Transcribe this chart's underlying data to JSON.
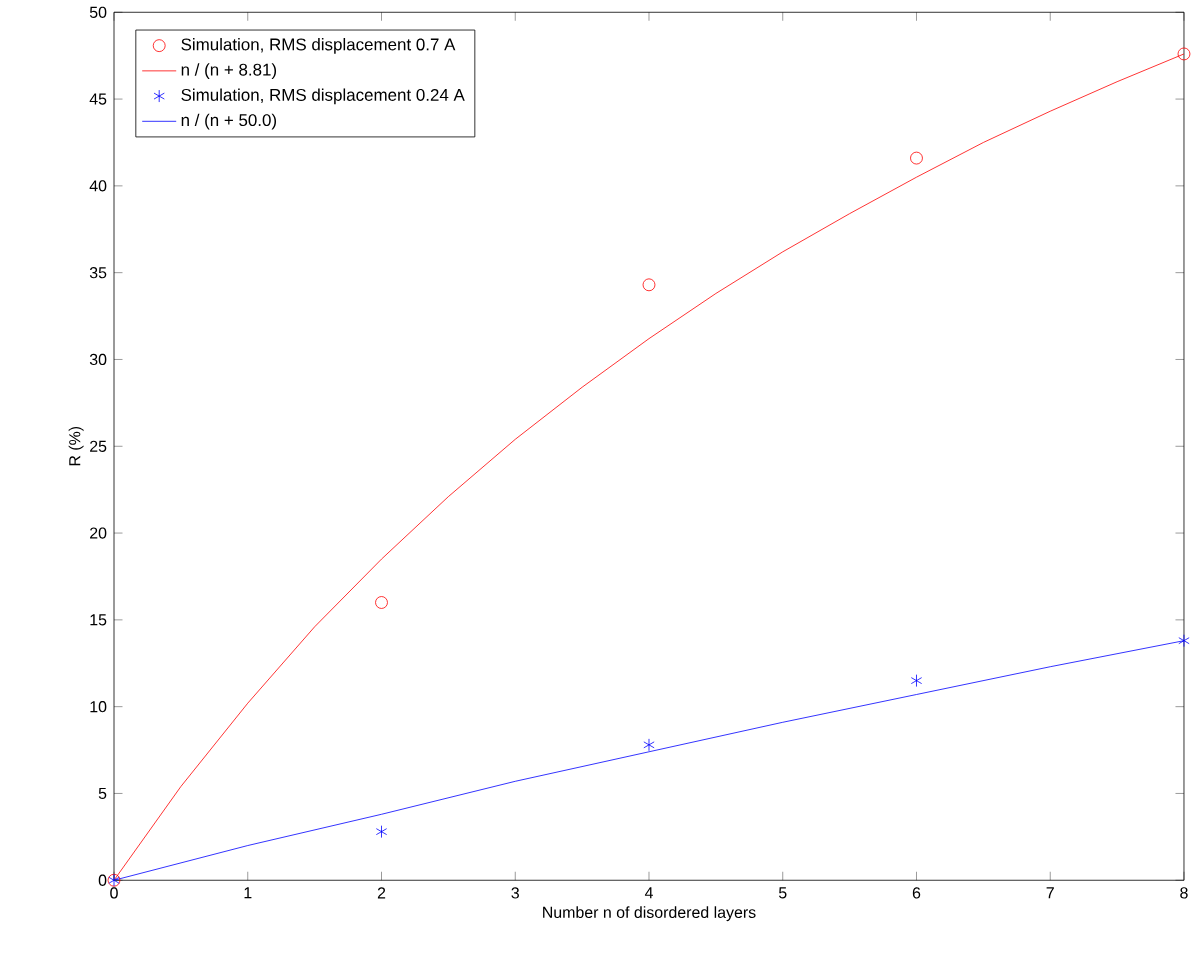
{
  "chart_data": {
    "type": "scatter",
    "xlabel": "Number n of disordered layers",
    "ylabel": "R (%)",
    "xlim": [
      0,
      8
    ],
    "ylim": [
      0,
      50
    ],
    "xticks": [
      0,
      1,
      2,
      3,
      4,
      5,
      6,
      7,
      8
    ],
    "yticks": [
      0,
      5,
      10,
      15,
      20,
      25,
      30,
      35,
      40,
      45,
      50
    ],
    "grid": false,
    "legend": "top left",
    "series": [
      {
        "name": "Simulation, RMS displacement 0.7 A",
        "color": "#ff0000",
        "marker": "circle",
        "x": [
          0,
          2,
          4,
          6,
          8
        ],
        "values": [
          0,
          16,
          34.3,
          41.6,
          47.6
        ]
      },
      {
        "type": "line",
        "name": "n / (n + 8.81)",
        "color": "#ff0000",
        "marker": "none",
        "x": [
          0,
          0.5,
          1,
          1.5,
          2,
          2.5,
          3,
          3.5,
          4,
          4.5,
          5,
          5.5,
          6,
          6.5,
          7,
          7.5,
          8
        ],
        "values": [
          0,
          5.4,
          10.2,
          14.6,
          18.5,
          22.1,
          25.4,
          28.4,
          31.2,
          33.8,
          36.2,
          38.4,
          40.5,
          42.5,
          44.3,
          46,
          47.6
        ]
      },
      {
        "name": "Simulation, RMS displacement 0.24 A",
        "color": "#0000ff",
        "marker": "cross",
        "x": [
          0,
          2,
          4,
          6,
          8
        ],
        "values": [
          0,
          2.8,
          7.8,
          11.5,
          13.8
        ]
      },
      {
        "type": "line",
        "name": "n / (n + 50.0)",
        "color": "#0000ff",
        "marker": "none",
        "x": [
          0,
          1,
          2,
          3,
          4,
          5,
          6,
          7,
          8
        ],
        "values": [
          0,
          2,
          3.8,
          5.7,
          7.4,
          9.1,
          10.7,
          12.3,
          13.8
        ]
      }
    ]
  }
}
